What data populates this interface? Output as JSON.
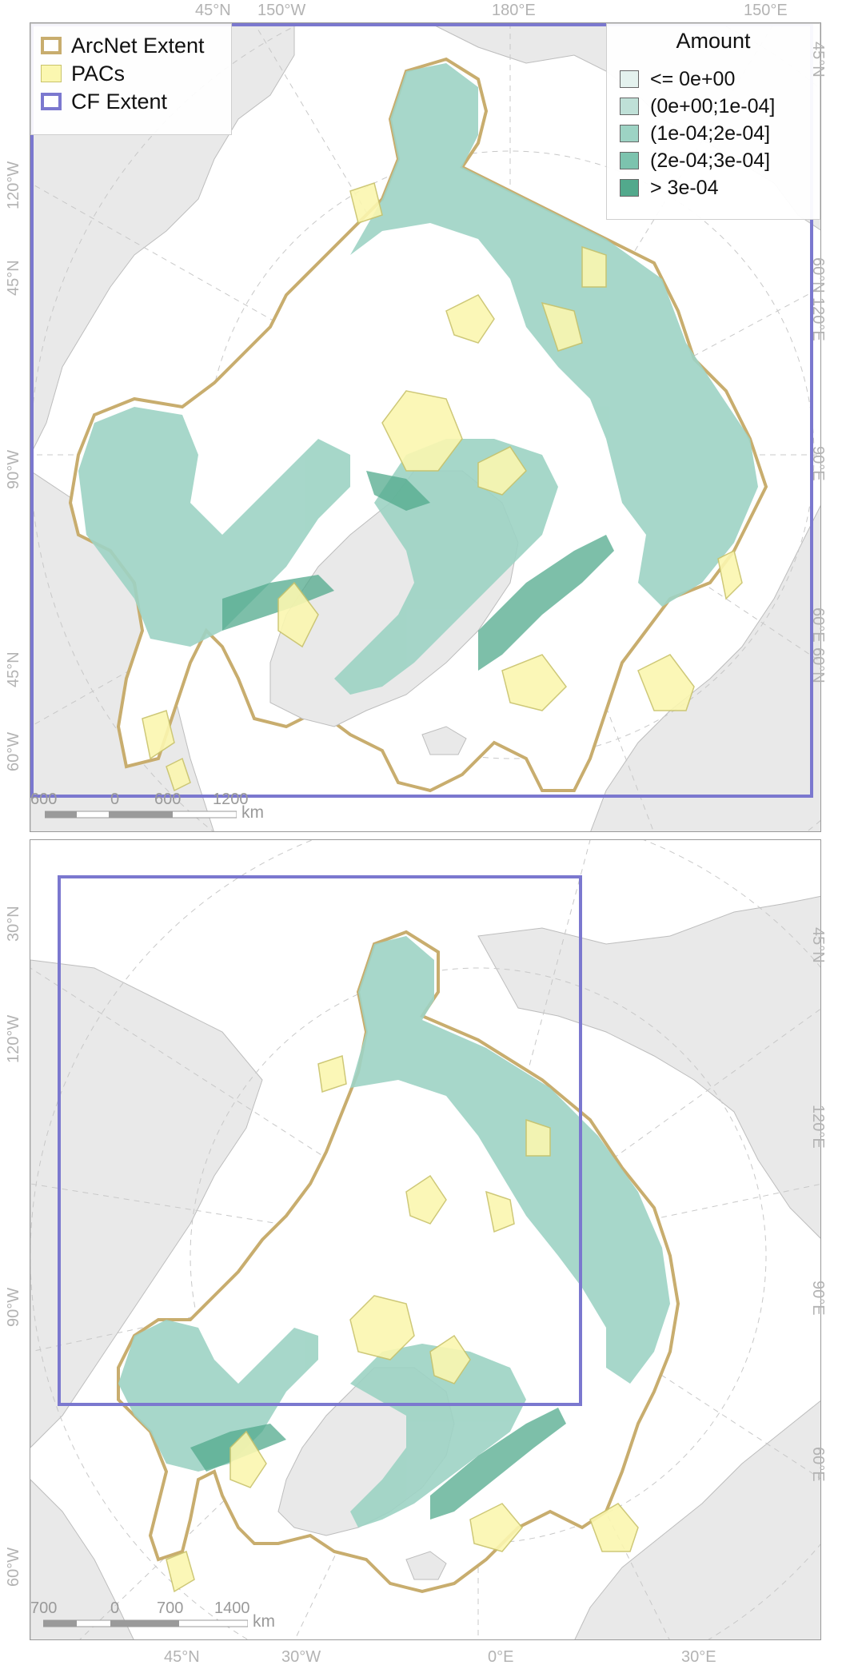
{
  "panel1": {
    "top_labels": [
      "45°N",
      "150°W",
      "180°E",
      "150°E"
    ],
    "left_labels": [
      "120°W",
      "45°N",
      "90°W",
      "45°N",
      "60°W"
    ],
    "right_labels": [
      "45°N",
      "60°N",
      "120°E",
      "90°E",
      "60°E",
      "60°N"
    ],
    "scale": {
      "ticks": [
        "600",
        "0",
        "600",
        "1200"
      ],
      "unit": "km"
    },
    "legend_features": [
      {
        "label": "ArcNet Extent",
        "color": "#c8ad6e"
      },
      {
        "label": "PACs",
        "color": "#fbf7b0"
      },
      {
        "label": "CF Extent",
        "color": "#7b78cf"
      }
    ],
    "legend_amount": {
      "title": "Amount",
      "classes": [
        {
          "label": "<= 0e+00",
          "color": "#e4f2ee"
        },
        {
          "label": "(0e+00;1e-04]",
          "color": "#bfe0d7"
        },
        {
          "label": "(1e-04;2e-04]",
          "color": "#9dd3c4"
        },
        {
          "label": "(2e-04;3e-04]",
          "color": "#7cc3ae"
        },
        {
          "label": "> 3e-04",
          "color": "#52a98c"
        }
      ]
    }
  },
  "panel2": {
    "top_labels": [],
    "left_labels": [
      "30°N",
      "120°W",
      "90°W",
      "60°W"
    ],
    "right_labels": [
      "45°N",
      "120°E",
      "90°E",
      "60°E"
    ],
    "bottom_labels": [
      "45°N",
      "30°W",
      "0°E",
      "30°E"
    ],
    "scale": {
      "ticks": [
        "700",
        "0",
        "700",
        "1400"
      ],
      "unit": "km"
    }
  },
  "colors": {
    "land": "#e9e9e9",
    "land_edge": "#bdbdbd",
    "ocean_area": "#ffffff",
    "teal": "#9dd3c4",
    "teal_dark": "#52a98c",
    "pacs": "#fbf7b0",
    "pacs_edge": "#c9c36a",
    "arcnet": "#c8ad6e",
    "cf": "#7b78cf",
    "graticule": "#c8c8c8"
  }
}
